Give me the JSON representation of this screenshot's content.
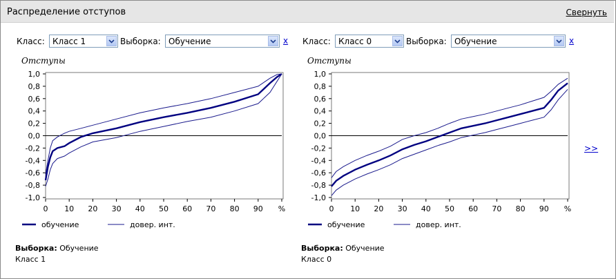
{
  "header": {
    "title": "Распределение отступов",
    "collapse_label": "Свернуть"
  },
  "panels": [
    {
      "class_label": "Класс:",
      "class_value": "Класс 1",
      "sample_label": "Выборка:",
      "sample_value": "Обучение",
      "close_label": "x",
      "chart_title": "Отступы",
      "legend_main": "обучение",
      "legend_ci": "довер. инт.",
      "footer_sample_label": "Выборка:",
      "footer_sample_value": "Обучение",
      "footer_class": "Класс 1"
    },
    {
      "class_label": "Класс:",
      "class_value": "Класс 0",
      "sample_label": "Выборка:",
      "sample_value": "Обучение",
      "close_label": "x",
      "chart_title": "Отступы",
      "legend_main": "обучение",
      "legend_ci": "довер. инт.",
      "footer_sample_label": "Выборка:",
      "footer_sample_value": "Обучение",
      "footer_class": "Класс 0"
    }
  ],
  "next_label": ">>",
  "colors": {
    "main": "#000080",
    "ci": "#1a1a8c",
    "zero": "#000000"
  },
  "chart_data": [
    {
      "type": "line",
      "title": "Отступы",
      "xlabel": "%",
      "ylabel": "",
      "xlim": [
        0,
        100
      ],
      "ylim": [
        -1.0,
        1.0
      ],
      "xticks": [
        "0",
        "10",
        "20",
        "30",
        "40",
        "50",
        "60",
        "70",
        "80",
        "90",
        "%"
      ],
      "yticks": [
        "1,0",
        "0,8",
        "0,6",
        "0,4",
        "0,2",
        "0,0",
        "-0,2",
        "-0,4",
        "-0,6",
        "-0,8",
        "-1,0"
      ],
      "series": [
        {
          "name": "обучение",
          "x": [
            0,
            1,
            2,
            3,
            5,
            8,
            10,
            15,
            20,
            30,
            40,
            50,
            60,
            70,
            80,
            90,
            95,
            98,
            100
          ],
          "y": [
            -0.72,
            -0.5,
            -0.35,
            -0.25,
            -0.2,
            -0.17,
            -0.12,
            -0.02,
            0.04,
            0.12,
            0.22,
            0.3,
            0.37,
            0.45,
            0.55,
            0.67,
            0.85,
            0.95,
            1.0
          ]
        },
        {
          "name": "довер. инт.",
          "x": [
            0,
            1,
            2,
            3,
            5,
            8,
            10,
            15,
            20,
            30,
            40,
            50,
            60,
            70,
            80,
            90,
            95,
            98,
            100
          ],
          "y": [
            -0.62,
            -0.4,
            -0.2,
            -0.08,
            -0.02,
            0.04,
            0.07,
            0.12,
            0.17,
            0.27,
            0.37,
            0.45,
            0.52,
            0.6,
            0.7,
            0.8,
            0.93,
            0.99,
            1.0
          ]
        },
        {
          "name": "довер. инт.",
          "x": [
            0,
            1,
            2,
            3,
            5,
            8,
            10,
            15,
            20,
            30,
            40,
            50,
            60,
            70,
            80,
            90,
            95,
            98,
            100
          ],
          "y": [
            -0.82,
            -0.7,
            -0.55,
            -0.45,
            -0.37,
            -0.33,
            -0.28,
            -0.18,
            -0.1,
            -0.03,
            0.07,
            0.15,
            0.23,
            0.3,
            0.4,
            0.52,
            0.7,
            0.88,
            1.0
          ]
        }
      ],
      "grid": false
    },
    {
      "type": "line",
      "title": "Отступы",
      "xlabel": "%",
      "ylabel": "",
      "xlim": [
        0,
        100
      ],
      "ylim": [
        -1.0,
        1.0
      ],
      "xticks": [
        "0",
        "10",
        "20",
        "30",
        "40",
        "50",
        "60",
        "70",
        "80",
        "90",
        "%"
      ],
      "yticks": [
        "1,0",
        "0,8",
        "0,6",
        "0,4",
        "0,2",
        "0,0",
        "-0,2",
        "-0,4",
        "-0,6",
        "-0,8",
        "-1,0"
      ],
      "series": [
        {
          "name": "обучение",
          "x": [
            0,
            2,
            5,
            10,
            15,
            20,
            25,
            30,
            35,
            40,
            45,
            50,
            55,
            60,
            65,
            70,
            75,
            80,
            85,
            90,
            93,
            96,
            100
          ],
          "y": [
            -0.82,
            -0.73,
            -0.65,
            -0.55,
            -0.47,
            -0.4,
            -0.32,
            -0.22,
            -0.15,
            -0.09,
            -0.02,
            0.05,
            0.12,
            0.16,
            0.2,
            0.25,
            0.3,
            0.35,
            0.4,
            0.45,
            0.58,
            0.73,
            0.85
          ]
        },
        {
          "name": "довер. инт.",
          "x": [
            0,
            2,
            5,
            10,
            15,
            20,
            25,
            30,
            35,
            40,
            45,
            50,
            55,
            60,
            65,
            70,
            75,
            80,
            85,
            90,
            93,
            96,
            100
          ],
          "y": [
            -0.68,
            -0.58,
            -0.5,
            -0.4,
            -0.32,
            -0.25,
            -0.17,
            -0.06,
            0.0,
            0.05,
            0.12,
            0.2,
            0.27,
            0.31,
            0.35,
            0.4,
            0.45,
            0.5,
            0.56,
            0.62,
            0.72,
            0.83,
            0.93
          ]
        },
        {
          "name": "довер. инт.",
          "x": [
            0,
            2,
            5,
            10,
            15,
            20,
            25,
            30,
            35,
            40,
            45,
            50,
            55,
            60,
            65,
            70,
            75,
            80,
            85,
            90,
            93,
            96,
            100
          ],
          "y": [
            -0.97,
            -0.88,
            -0.8,
            -0.7,
            -0.62,
            -0.55,
            -0.47,
            -0.37,
            -0.3,
            -0.23,
            -0.16,
            -0.1,
            -0.03,
            0.01,
            0.05,
            0.1,
            0.15,
            0.2,
            0.25,
            0.3,
            0.42,
            0.58,
            0.75
          ]
        }
      ],
      "grid": false
    }
  ]
}
